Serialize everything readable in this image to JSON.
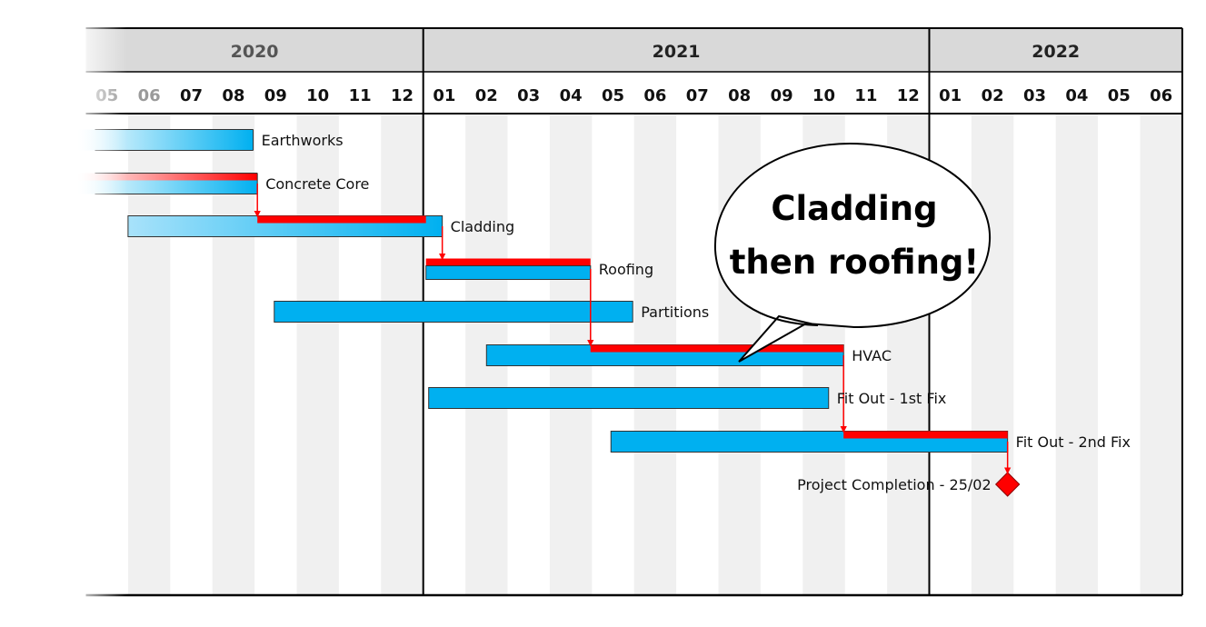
{
  "chart_data": {
    "type": "gantt",
    "years": [
      {
        "label": "2020",
        "start": "2020-05",
        "end": "2020-12"
      },
      {
        "label": "2021",
        "start": "2021-01",
        "end": "2021-12"
      },
      {
        "label": "2022",
        "start": "2022-01",
        "end": "2022-06"
      }
    ],
    "months": [
      "2020-05",
      "2020-06",
      "2020-07",
      "2020-08",
      "2020-09",
      "2020-10",
      "2020-11",
      "2020-12",
      "2021-01",
      "2021-02",
      "2021-03",
      "2021-04",
      "2021-05",
      "2021-06",
      "2021-07",
      "2021-08",
      "2021-09",
      "2021-10",
      "2021-11",
      "2021-12",
      "2022-01",
      "2022-02",
      "2022-03",
      "2022-04",
      "2022-05",
      "2022-06"
    ],
    "month_labels": [
      "05",
      "06",
      "07",
      "08",
      "09",
      "10",
      "11",
      "12",
      "01",
      "02",
      "03",
      "04",
      "05",
      "06",
      "07",
      "08",
      "09",
      "10",
      "11",
      "12",
      "01",
      "02",
      "03",
      "04",
      "05",
      "06"
    ],
    "tasks": [
      {
        "name": "Earthworks",
        "start": "2020-04-15",
        "end": "2020-08-31",
        "critical": false
      },
      {
        "name": "Concrete Core",
        "start": "2020-04-15",
        "end": "2020-09-03",
        "critical": true
      },
      {
        "name": "Cladding",
        "start": "2020-06-01",
        "end": "2021-01-15",
        "critical": true,
        "critical_start": "2020-09-03",
        "critical_end": "2021-01-03"
      },
      {
        "name": "Roofing",
        "start": "2021-01-03",
        "end": "2021-04-30",
        "critical": true
      },
      {
        "name": "Partitions",
        "start": "2020-09-15",
        "end": "2021-05-31",
        "critical": false
      },
      {
        "name": "HVAC",
        "start": "2021-02-15",
        "end": "2021-10-31",
        "critical": true,
        "critical_start": "2021-04-30",
        "critical_end": "2021-10-31"
      },
      {
        "name": "Fit Out - 1st Fix",
        "start": "2021-01-05",
        "end": "2021-10-20",
        "critical": false
      },
      {
        "name": "Fit Out - 2nd Fix",
        "start": "2021-05-15",
        "end": "2022-02-25",
        "critical": true,
        "critical_start": "2021-10-31",
        "critical_end": "2022-02-25"
      }
    ],
    "milestones": [
      {
        "name": "Project Completion - 25/02",
        "date": "2022-02-25"
      }
    ],
    "dependencies": [
      {
        "from": "Concrete Core",
        "to": "Cladding"
      },
      {
        "from": "Cladding",
        "to": "Roofing"
      },
      {
        "from": "Roofing",
        "to": "HVAC"
      },
      {
        "from": "HVAC",
        "to": "Fit Out - 2nd Fix"
      },
      {
        "from": "Fit Out - 2nd Fix",
        "to": "Project Completion - 25/02"
      }
    ],
    "callout": {
      "lines": [
        "Cladding",
        "then roofing!"
      ]
    },
    "colors": {
      "bar": "#00b0f0",
      "critical": "#ff0000",
      "shade": "#f0f0f0",
      "header": "#d9d9d9"
    }
  }
}
